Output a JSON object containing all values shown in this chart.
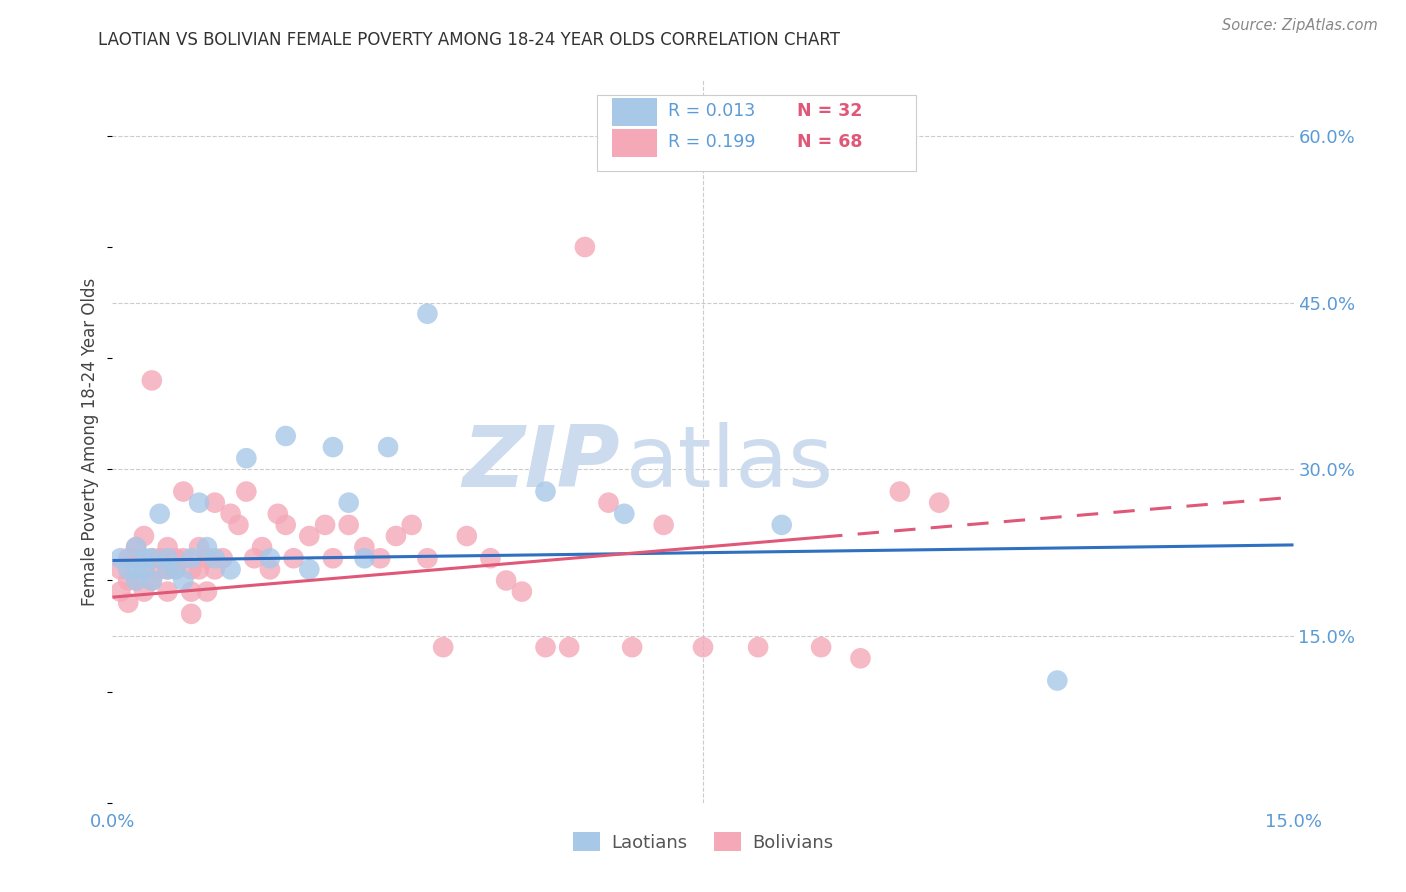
{
  "title": "LAOTIAN VS BOLIVIAN FEMALE POVERTY AMONG 18-24 YEAR OLDS CORRELATION CHART",
  "source": "Source: ZipAtlas.com",
  "tick_color": "#5b9bd5",
  "ylabel": "Female Poverty Among 18-24 Year Olds",
  "xlim": [
    0.0,
    0.15
  ],
  "ylim": [
    0.0,
    0.65
  ],
  "laotian_R": "0.013",
  "laotian_N": "32",
  "bolivian_R": "0.199",
  "bolivian_N": "68",
  "laotian_color": "#a8c8e8",
  "bolivian_color": "#f4a8b8",
  "laotian_line_color": "#3070c0",
  "bolivian_line_color": "#e05878",
  "watermark_zip": "ZIP",
  "watermark_atlas": "atlas",
  "watermark_color": "#ccdcee",
  "background_color": "#ffffff",
  "grid_color": "#cccccc",
  "legend_label_laotian": "Laotians",
  "legend_label_bolivian": "Bolivians",
  "laotian_x": [
    0.001,
    0.002,
    0.003,
    0.003,
    0.003,
    0.004,
    0.004,
    0.005,
    0.005,
    0.006,
    0.007,
    0.007,
    0.008,
    0.009,
    0.01,
    0.011,
    0.012,
    0.013,
    0.015,
    0.017,
    0.02,
    0.022,
    0.025,
    0.028,
    0.03,
    0.032,
    0.035,
    0.04,
    0.055,
    0.065,
    0.085,
    0.12
  ],
  "laotian_y": [
    0.22,
    0.21,
    0.2,
    0.23,
    0.21,
    0.22,
    0.21,
    0.22,
    0.2,
    0.26,
    0.21,
    0.22,
    0.21,
    0.2,
    0.22,
    0.27,
    0.23,
    0.22,
    0.21,
    0.31,
    0.22,
    0.33,
    0.21,
    0.32,
    0.27,
    0.22,
    0.32,
    0.44,
    0.28,
    0.26,
    0.25,
    0.11
  ],
  "bolivian_x": [
    0.001,
    0.001,
    0.002,
    0.002,
    0.002,
    0.003,
    0.003,
    0.003,
    0.004,
    0.004,
    0.004,
    0.005,
    0.005,
    0.005,
    0.006,
    0.006,
    0.007,
    0.007,
    0.007,
    0.008,
    0.008,
    0.009,
    0.009,
    0.01,
    0.01,
    0.01,
    0.011,
    0.011,
    0.012,
    0.012,
    0.013,
    0.013,
    0.014,
    0.015,
    0.016,
    0.017,
    0.018,
    0.019,
    0.02,
    0.021,
    0.022,
    0.023,
    0.025,
    0.027,
    0.028,
    0.03,
    0.032,
    0.034,
    0.036,
    0.038,
    0.04,
    0.042,
    0.045,
    0.048,
    0.05,
    0.052,
    0.055,
    0.058,
    0.06,
    0.063,
    0.066,
    0.07,
    0.075,
    0.082,
    0.09,
    0.095,
    0.1,
    0.105
  ],
  "bolivian_y": [
    0.21,
    0.19,
    0.22,
    0.2,
    0.18,
    0.23,
    0.2,
    0.22,
    0.21,
    0.19,
    0.24,
    0.22,
    0.2,
    0.38,
    0.22,
    0.21,
    0.23,
    0.21,
    0.19,
    0.22,
    0.21,
    0.28,
    0.22,
    0.21,
    0.19,
    0.17,
    0.23,
    0.21,
    0.22,
    0.19,
    0.27,
    0.21,
    0.22,
    0.26,
    0.25,
    0.28,
    0.22,
    0.23,
    0.21,
    0.26,
    0.25,
    0.22,
    0.24,
    0.25,
    0.22,
    0.25,
    0.23,
    0.22,
    0.24,
    0.25,
    0.22,
    0.14,
    0.24,
    0.22,
    0.2,
    0.19,
    0.14,
    0.14,
    0.5,
    0.27,
    0.14,
    0.25,
    0.14,
    0.14,
    0.14,
    0.13,
    0.28,
    0.27
  ],
  "lao_line_x0": 0.0,
  "lao_line_y0": 0.218,
  "lao_line_x1": 0.15,
  "lao_line_y1": 0.232,
  "bol_line_x0": 0.0,
  "bol_line_y0": 0.185,
  "bol_line_x1": 0.15,
  "bol_line_y1": 0.275
}
